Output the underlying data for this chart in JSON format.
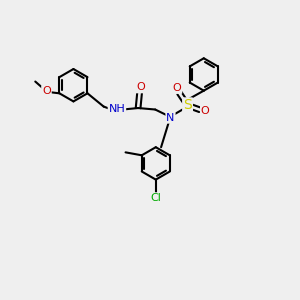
{
  "background_color": "#efefef",
  "bond_color": "#000000",
  "atom_colors": {
    "N": "#0000cc",
    "O": "#cc0000",
    "S": "#cccc00",
    "Cl": "#00aa00",
    "H": "#555555",
    "C": "#000000"
  },
  "bond_lw": 1.5,
  "font_size": 8,
  "ring_r": 0.55,
  "xlim": [
    0,
    10
  ],
  "ylim": [
    0,
    10
  ]
}
